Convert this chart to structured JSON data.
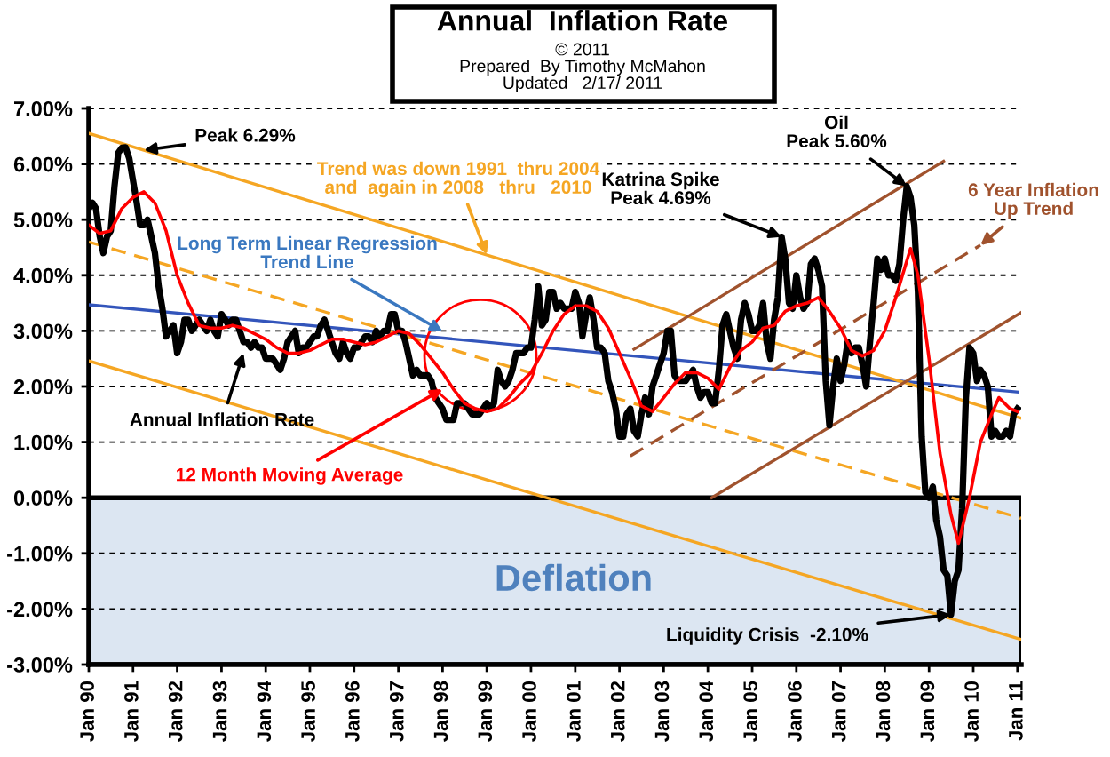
{
  "chart_data": {
    "type": "line",
    "title": "Annual  Inflation Rate",
    "subtitle": "© 2011\nPrepared  By Timothy McMahon\nUpdated   2/17/ 2011",
    "xlim": [
      "1990-01",
      "2011-02"
    ],
    "xticks": [
      {
        "value": "1990-01",
        "label": "Jan 90"
      },
      {
        "value": "1991-01",
        "label": "Jan 91"
      },
      {
        "value": "1992-01",
        "label": "Jan 92"
      },
      {
        "value": "1993-01",
        "label": "Jan 93"
      },
      {
        "value": "1994-01",
        "label": "Jan 94"
      },
      {
        "value": "1995-01",
        "label": "Jan 95"
      },
      {
        "value": "1996-01",
        "label": "Jan 96"
      },
      {
        "value": "1997-01",
        "label": "Jan 97"
      },
      {
        "value": "1998-01",
        "label": "Jan 98"
      },
      {
        "value": "1999-01",
        "label": "Jan 99"
      },
      {
        "value": "2000-01",
        "label": "Jan 00"
      },
      {
        "value": "2001-01",
        "label": "Jan 01"
      },
      {
        "value": "2002-01",
        "label": "Jan 02"
      },
      {
        "value": "2003-01",
        "label": "Jan 03"
      },
      {
        "value": "2004-01",
        "label": "Jan 04"
      },
      {
        "value": "2005-01",
        "label": "Jan 05"
      },
      {
        "value": "2006-01",
        "label": "Jan 06"
      },
      {
        "value": "2007-01",
        "label": "Jan 07"
      },
      {
        "value": "2008-01",
        "label": "Jan 08"
      },
      {
        "value": "2009-01",
        "label": "Jan 09"
      },
      {
        "value": "2010-01",
        "label": "Jan 10"
      },
      {
        "value": "2011-01",
        "label": "Jan 11"
      }
    ],
    "ylim": [
      -3,
      7
    ],
    "yticks": [
      {
        "value": 7,
        "label": "7.00%"
      },
      {
        "value": 6,
        "label": "6.00%"
      },
      {
        "value": 5,
        "label": "5.00%"
      },
      {
        "value": 4,
        "label": "4.00%"
      },
      {
        "value": 3,
        "label": "3.00%"
      },
      {
        "value": 2,
        "label": "2.00%"
      },
      {
        "value": 1,
        "label": "1.00%"
      },
      {
        "value": 0,
        "label": "0.00%"
      },
      {
        "value": -1,
        "label": "-1.00%"
      },
      {
        "value": -2,
        "label": "-2.00%"
      },
      {
        "value": -3,
        "label": "-3.00%"
      }
    ],
    "grid": "y",
    "legend": false,
    "bands": [
      {
        "axis": "y",
        "from": -3,
        "to": 0,
        "label": "Deflation",
        "color": "#dce6f2"
      }
    ],
    "series": [
      {
        "color": "#3355bb",
        "x": [
          "1990-01",
          "2011-01"
        ],
        "values": [
          3.47,
          1.9
        ]
      },
      {
        "color": "#f5a623",
        "x": [
          "1990-01",
          "2011-02"
        ],
        "values": [
          6.55,
          1.43
        ]
      },
      {
        "color": "#f5a623",
        "x": [
          "1990-01",
          "2011-02"
        ],
        "values": [
          2.46,
          -2.55
        ]
      },
      {
        "color": "#f5a623",
        "line_style": "dashed",
        "x": [
          "1990-01",
          "2011-02"
        ],
        "values": [
          4.6,
          -0.37
        ]
      },
      {
        "color": "#a0522d",
        "x": [
          "2002-05",
          "2009-05"
        ],
        "values": [
          2.67,
          6.05
        ]
      },
      {
        "color": "#a0522d",
        "line_style": "dashed",
        "x": [
          "2002-04",
          "2010-03"
        ],
        "values": [
          0.75,
          4.54
        ]
      },
      {
        "color": "#a0522d",
        "x": [
          "2004-02",
          "2011-02"
        ],
        "values": [
          0.0,
          3.33
        ]
      },
      {
        "color": "#000000",
        "x": [
          "1990-01",
          "1990-02",
          "1990-03",
          "1990-04",
          "1990-05",
          "1990-06",
          "1990-07",
          "1990-08",
          "1990-09",
          "1990-10",
          "1990-11",
          "1990-12",
          "1991-01",
          "1991-02",
          "1991-03",
          "1991-04",
          "1991-05",
          "1991-06",
          "1991-07",
          "1991-08",
          "1991-09",
          "1991-10",
          "1991-11",
          "1991-12",
          "1992-01",
          "1992-02",
          "1992-03",
          "1992-04",
          "1992-05",
          "1992-06",
          "1992-07",
          "1992-08",
          "1992-09",
          "1992-10",
          "1992-11",
          "1992-12",
          "1993-01",
          "1993-02",
          "1993-03",
          "1993-04",
          "1993-05",
          "1993-06",
          "1993-07",
          "1993-08",
          "1993-09",
          "1993-10",
          "1993-11",
          "1993-12",
          "1994-01",
          "1994-02",
          "1994-03",
          "1994-04",
          "1994-05",
          "1994-06",
          "1994-07",
          "1994-08",
          "1994-09",
          "1994-10",
          "1994-11",
          "1994-12",
          "1995-01",
          "1995-02",
          "1995-03",
          "1995-04",
          "1995-05",
          "1995-06",
          "1995-07",
          "1995-08",
          "1995-09",
          "1995-10",
          "1995-11",
          "1995-12",
          "1996-01",
          "1996-02",
          "1996-03",
          "1996-04",
          "1996-05",
          "1996-06",
          "1996-07",
          "1996-08",
          "1996-09",
          "1996-10",
          "1996-11",
          "1996-12",
          "1997-01",
          "1997-02",
          "1997-03",
          "1997-04",
          "1997-05",
          "1997-06",
          "1997-07",
          "1997-08",
          "1997-09",
          "1997-10",
          "1997-11",
          "1997-12",
          "1998-01",
          "1998-02",
          "1998-03",
          "1998-04",
          "1998-05",
          "1998-06",
          "1998-07",
          "1998-08",
          "1998-09",
          "1998-10",
          "1998-11",
          "1998-12",
          "1999-01",
          "1999-02",
          "1999-03",
          "1999-04",
          "1999-05",
          "1999-06",
          "1999-07",
          "1999-08",
          "1999-09",
          "1999-10",
          "1999-11",
          "1999-12",
          "2000-01",
          "2000-02",
          "2000-03",
          "2000-04",
          "2000-05",
          "2000-06",
          "2000-07",
          "2000-08",
          "2000-09",
          "2000-10",
          "2000-11",
          "2000-12",
          "2001-01",
          "2001-02",
          "2001-03",
          "2001-04",
          "2001-05",
          "2001-06",
          "2001-07",
          "2001-08",
          "2001-09",
          "2001-10",
          "2001-11",
          "2001-12",
          "2002-01",
          "2002-02",
          "2002-03",
          "2002-04",
          "2002-05",
          "2002-06",
          "2002-07",
          "2002-08",
          "2002-09",
          "2002-10",
          "2002-11",
          "2002-12",
          "2003-01",
          "2003-02",
          "2003-03",
          "2003-04",
          "2003-05",
          "2003-06",
          "2003-07",
          "2003-08",
          "2003-09",
          "2003-10",
          "2003-11",
          "2003-12",
          "2004-01",
          "2004-02",
          "2004-03",
          "2004-04",
          "2004-05",
          "2004-06",
          "2004-07",
          "2004-08",
          "2004-09",
          "2004-10",
          "2004-11",
          "2004-12",
          "2005-01",
          "2005-02",
          "2005-03",
          "2005-04",
          "2005-05",
          "2005-06",
          "2005-07",
          "2005-08",
          "2005-09",
          "2005-10",
          "2005-11",
          "2005-12",
          "2006-01",
          "2006-02",
          "2006-03",
          "2006-04",
          "2006-05",
          "2006-06",
          "2006-07",
          "2006-08",
          "2006-09",
          "2006-10",
          "2006-11",
          "2006-12",
          "2007-01",
          "2007-02",
          "2007-03",
          "2007-04",
          "2007-05",
          "2007-06",
          "2007-07",
          "2007-08",
          "2007-09",
          "2007-10",
          "2007-11",
          "2007-12",
          "2008-01",
          "2008-02",
          "2008-03",
          "2008-04",
          "2008-05",
          "2008-06",
          "2008-07",
          "2008-08",
          "2008-09",
          "2008-10",
          "2008-11",
          "2008-12",
          "2009-01",
          "2009-02",
          "2009-03",
          "2009-04",
          "2009-05",
          "2009-06",
          "2009-07",
          "2009-08",
          "2009-09",
          "2009-10",
          "2009-11",
          "2009-12",
          "2010-01",
          "2010-02",
          "2010-03",
          "2010-04",
          "2010-05",
          "2010-06",
          "2010-07",
          "2010-08",
          "2010-09",
          "2010-10",
          "2010-11",
          "2010-12",
          "2011-01"
        ],
        "values": [
          5.2,
          5.3,
          5.2,
          4.7,
          4.4,
          4.7,
          4.8,
          5.6,
          6.2,
          6.29,
          6.3,
          6.1,
          5.7,
          5.3,
          4.9,
          4.9,
          5.0,
          4.7,
          4.4,
          3.8,
          3.4,
          2.9,
          3.0,
          3.1,
          2.6,
          2.8,
          3.2,
          3.2,
          3.0,
          3.1,
          3.2,
          3.1,
          3.0,
          3.2,
          3.0,
          2.9,
          3.3,
          3.2,
          3.1,
          3.2,
          3.2,
          3.0,
          2.8,
          2.8,
          2.7,
          2.8,
          2.7,
          2.7,
          2.5,
          2.5,
          2.5,
          2.4,
          2.3,
          2.5,
          2.8,
          2.9,
          3.0,
          2.6,
          2.7,
          2.7,
          2.8,
          2.9,
          2.9,
          3.1,
          3.2,
          3.0,
          2.8,
          2.6,
          2.5,
          2.8,
          2.6,
          2.5,
          2.7,
          2.7,
          2.8,
          2.9,
          2.9,
          2.8,
          3.0,
          2.9,
          3.0,
          3.0,
          3.3,
          3.3,
          3.0,
          3.0,
          2.8,
          2.5,
          2.2,
          2.3,
          2.2,
          2.2,
          2.2,
          2.1,
          1.8,
          1.7,
          1.6,
          1.4,
          1.4,
          1.4,
          1.7,
          1.7,
          1.7,
          1.6,
          1.5,
          1.5,
          1.5,
          1.6,
          1.7,
          1.6,
          1.7,
          2.3,
          2.1,
          2.0,
          2.1,
          2.3,
          2.6,
          2.6,
          2.6,
          2.7,
          2.7,
          3.2,
          3.8,
          3.1,
          3.2,
          3.7,
          3.7,
          3.4,
          3.5,
          3.4,
          3.4,
          3.4,
          3.7,
          3.5,
          2.9,
          3.3,
          3.6,
          3.2,
          2.7,
          2.7,
          2.6,
          2.1,
          1.9,
          1.6,
          1.1,
          1.1,
          1.5,
          1.6,
          1.2,
          1.1,
          1.5,
          1.8,
          1.5,
          2.0,
          2.2,
          2.4,
          2.6,
          3.0,
          3.0,
          2.2,
          2.1,
          2.1,
          2.1,
          2.2,
          2.3,
          2.0,
          1.8,
          1.9,
          1.9,
          1.7,
          1.7,
          2.3,
          3.1,
          3.3,
          3.0,
          2.7,
          2.5,
          3.2,
          3.5,
          3.3,
          3.0,
          3.0,
          3.1,
          3.5,
          2.8,
          2.5,
          3.2,
          3.6,
          4.69,
          4.3,
          3.5,
          3.4,
          4.0,
          3.6,
          3.4,
          3.5,
          4.2,
          4.3,
          4.1,
          3.8,
          2.1,
          1.3,
          2.0,
          2.5,
          2.1,
          2.4,
          2.8,
          2.6,
          2.7,
          2.7,
          2.4,
          2.0,
          2.8,
          3.5,
          4.3,
          4.1,
          4.3,
          4.0,
          4.0,
          3.9,
          4.2,
          5.0,
          5.6,
          5.4,
          4.9,
          3.7,
          1.1,
          0.1,
          0.0,
          0.2,
          -0.4,
          -0.7,
          -1.3,
          -1.4,
          -2.1,
          -1.5,
          -1.3,
          -0.2,
          1.8,
          2.7,
          2.6,
          2.1,
          2.3,
          2.2,
          2.0,
          1.1,
          1.2,
          1.1,
          1.1,
          1.2,
          1.1,
          1.5,
          1.6
        ]
      },
      {
        "color": "#ff0000",
        "x": [
          "1990-01",
          "1990-04",
          "1990-07",
          "1990-10",
          "1991-01",
          "1991-04",
          "1991-07",
          "1991-10",
          "1992-01",
          "1992-04",
          "1992-07",
          "1992-10",
          "1993-01",
          "1993-04",
          "1993-07",
          "1993-10",
          "1994-01",
          "1994-04",
          "1994-07",
          "1994-10",
          "1995-01",
          "1995-04",
          "1995-07",
          "1995-10",
          "1996-01",
          "1996-04",
          "1996-07",
          "1996-10",
          "1997-01",
          "1997-04",
          "1997-07",
          "1997-10",
          "1998-01",
          "1998-04",
          "1998-07",
          "1998-10",
          "1999-01",
          "1999-04",
          "1999-07",
          "1999-10",
          "2000-01",
          "2000-04",
          "2000-07",
          "2000-10",
          "2001-01",
          "2001-04",
          "2001-07",
          "2001-10",
          "2002-01",
          "2002-04",
          "2002-07",
          "2002-10",
          "2003-01",
          "2003-04",
          "2003-07",
          "2003-10",
          "2004-01",
          "2004-04",
          "2004-07",
          "2004-10",
          "2005-01",
          "2005-04",
          "2005-07",
          "2005-10",
          "2006-01",
          "2006-04",
          "2006-07",
          "2006-10",
          "2007-01",
          "2007-04",
          "2007-07",
          "2007-10",
          "2008-01",
          "2008-04",
          "2008-08",
          "2008-10",
          "2009-01",
          "2009-04",
          "2009-07",
          "2009-09",
          "2009-12",
          "2010-03",
          "2010-06",
          "2010-08",
          "2010-11",
          "2011-01"
        ],
        "values": [
          4.9,
          4.75,
          4.8,
          5.2,
          5.4,
          5.5,
          5.3,
          4.8,
          4.0,
          3.5,
          3.1,
          3.05,
          3.05,
          3.1,
          3.05,
          2.95,
          2.85,
          2.7,
          2.6,
          2.6,
          2.65,
          2.75,
          2.85,
          2.85,
          2.8,
          2.75,
          2.8,
          2.9,
          3.0,
          2.95,
          2.75,
          2.5,
          2.25,
          1.95,
          1.7,
          1.6,
          1.55,
          1.6,
          1.8,
          2.05,
          2.25,
          2.6,
          3.0,
          3.3,
          3.45,
          3.45,
          3.35,
          3.05,
          2.6,
          2.15,
          1.65,
          1.55,
          1.8,
          2.05,
          2.25,
          2.25,
          2.15,
          1.95,
          2.35,
          2.65,
          2.8,
          3.05,
          3.1,
          3.35,
          3.45,
          3.5,
          3.6,
          3.35,
          3.05,
          2.65,
          2.55,
          2.65,
          3.0,
          3.6,
          4.48,
          4.0,
          2.5,
          0.8,
          -0.3,
          -0.82,
          0.0,
          1.0,
          1.5,
          1.8,
          1.6,
          1.55
        ]
      }
    ],
    "annotations": [
      {
        "text": "Peak 6.29%",
        "x": "1991-04",
        "y": 6.25
      },
      {
        "text": "Trend was down 1991  thru 2004\nand  again in 2008   thru   2010",
        "x": "1999-01",
        "y": 4.37
      },
      {
        "text": "Long Term Linear Regression\nTrend Line",
        "x": "1998-01",
        "y": 2.99
      },
      {
        "text": "Annual Inflation Rate",
        "x": "1993-07",
        "y": 2.6
      },
      {
        "text": "12 Month Moving Average",
        "x": "1998-01",
        "y": 1.95
      },
      {
        "text": "Katrina Spike\nPeak 4.69%",
        "x": "2005-09",
        "y": 4.69
      },
      {
        "text": "Oil\nPeak 5.60%",
        "x": "2008-07",
        "y": 5.6
      },
      {
        "text": "6 Year Inflation\nUp Trend",
        "x": "2010-03",
        "y": 4.54
      },
      {
        "text": "Liquidity Crisis  -2.10%",
        "x": "2009-07",
        "y": -2.1
      }
    ]
  }
}
